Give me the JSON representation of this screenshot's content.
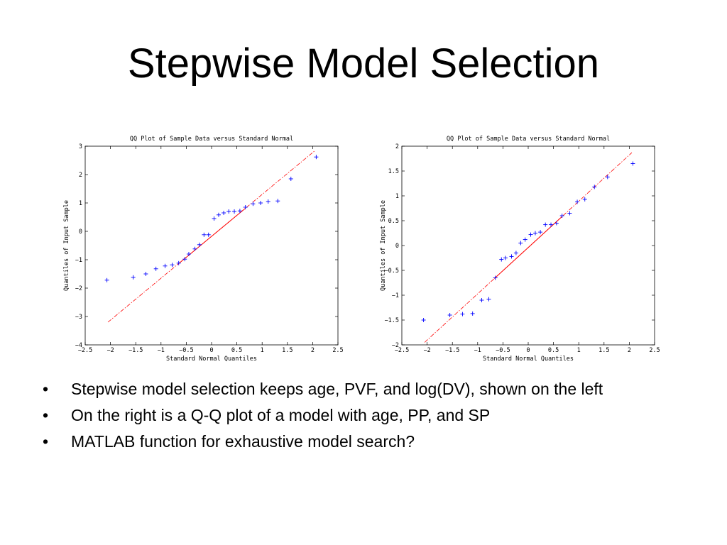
{
  "slide": {
    "title": "Stepwise Model Selection",
    "bullets": [
      "Stepwise model selection keeps age, PVF, and log(DV), shown on the left",
      "On the right is a Q-Q plot of a model with age, PP, and SP",
      "MATLAB function for exhaustive model search?"
    ]
  },
  "chart_data": [
    {
      "type": "scatter",
      "title": "QQ Plot of Sample Data versus Standard Normal",
      "xlabel": "Standard Normal Quantiles",
      "ylabel": "Quantiles of Input Sample",
      "xlim": [
        -2.5,
        2.5
      ],
      "ylim": [
        -4,
        3
      ],
      "xticks": [
        -2.5,
        -2,
        -1.5,
        -1,
        -0.5,
        0,
        0.5,
        1,
        1.5,
        2,
        2.5
      ],
      "xtick_labels": [
        "−2.5",
        "−2",
        "−1.5",
        "−1",
        "−0.5",
        "0",
        "0.5",
        "1",
        "1.5",
        "2",
        "2.5"
      ],
      "yticks": [
        -4,
        -3,
        -2,
        -1,
        0,
        1,
        2,
        3
      ],
      "ytick_labels": [
        "−4",
        "−3",
        "−2",
        "−1",
        "0",
        "1",
        "2",
        "3"
      ],
      "marker": "+",
      "marker_color": "#0000ff",
      "reference_line": {
        "x": [
          -2.05,
          2.05
        ],
        "y": [
          -3.2,
          2.85
        ],
        "solid_x": [
          -0.67,
          0.67
        ],
        "color": "#ff0000",
        "style": "dash-dot"
      },
      "points": [
        [
          -2.07,
          -1.72
        ],
        [
          -1.55,
          -1.62
        ],
        [
          -1.3,
          -1.5
        ],
        [
          -1.1,
          -1.32
        ],
        [
          -0.92,
          -1.22
        ],
        [
          -0.78,
          -1.18
        ],
        [
          -0.65,
          -1.12
        ],
        [
          -0.53,
          -0.98
        ],
        [
          -0.45,
          -0.8
        ],
        [
          -0.33,
          -0.62
        ],
        [
          -0.24,
          -0.47
        ],
        [
          -0.15,
          -0.12
        ],
        [
          -0.06,
          -0.12
        ],
        [
          0.05,
          0.45
        ],
        [
          0.14,
          0.58
        ],
        [
          0.24,
          0.65
        ],
        [
          0.34,
          0.7
        ],
        [
          0.45,
          0.7
        ],
        [
          0.56,
          0.72
        ],
        [
          0.67,
          0.85
        ],
        [
          0.82,
          0.97
        ],
        [
          0.97,
          1.0
        ],
        [
          1.12,
          1.05
        ],
        [
          1.31,
          1.07
        ],
        [
          1.57,
          1.85
        ],
        [
          2.07,
          2.62
        ]
      ]
    },
    {
      "type": "scatter",
      "title": "QQ Plot of Sample Data versus Standard Normal",
      "xlabel": "Standard Normal Quantiles",
      "ylabel": "Quantiles of Input Sample",
      "xlim": [
        -2.5,
        2.5
      ],
      "ylim": [
        -2,
        2
      ],
      "xticks": [
        -2.5,
        -2,
        -1.5,
        -1,
        -0.5,
        0,
        0.5,
        1,
        1.5,
        2,
        2.5
      ],
      "xtick_labels": [
        "−2.5",
        "−2",
        "−1.5",
        "−1",
        "−0.5",
        "0",
        "0.5",
        "1",
        "1.5",
        "2",
        "2.5"
      ],
      "yticks": [
        -2,
        -1.5,
        -1,
        -0.5,
        0,
        0.5,
        1,
        1.5,
        2
      ],
      "ytick_labels": [
        "−2",
        "−1.5",
        "−1",
        "−0.5",
        "0",
        "0.5",
        "1",
        "1.5",
        "2"
      ],
      "marker": "+",
      "marker_color": "#0000ff",
      "reference_line": {
        "x": [
          -2.05,
          2.05
        ],
        "y": [
          -1.95,
          1.87
        ],
        "solid_x": [
          -0.67,
          0.67
        ],
        "color": "#ff0000",
        "style": "dash-dot"
      },
      "points": [
        [
          -2.07,
          -1.5
        ],
        [
          -1.55,
          -1.4
        ],
        [
          -1.3,
          -1.38
        ],
        [
          -1.1,
          -1.37
        ],
        [
          -0.92,
          -1.1
        ],
        [
          -0.78,
          -1.08
        ],
        [
          -0.65,
          -0.65
        ],
        [
          -0.53,
          -0.28
        ],
        [
          -0.45,
          -0.25
        ],
        [
          -0.33,
          -0.22
        ],
        [
          -0.24,
          -0.15
        ],
        [
          -0.15,
          0.05
        ],
        [
          -0.06,
          0.12
        ],
        [
          0.05,
          0.22
        ],
        [
          0.14,
          0.25
        ],
        [
          0.24,
          0.27
        ],
        [
          0.34,
          0.42
        ],
        [
          0.45,
          0.42
        ],
        [
          0.56,
          0.45
        ],
        [
          0.67,
          0.6
        ],
        [
          0.82,
          0.65
        ],
        [
          0.97,
          0.88
        ],
        [
          1.12,
          0.93
        ],
        [
          1.31,
          1.18
        ],
        [
          1.57,
          1.38
        ],
        [
          2.07,
          1.65
        ]
      ]
    }
  ]
}
